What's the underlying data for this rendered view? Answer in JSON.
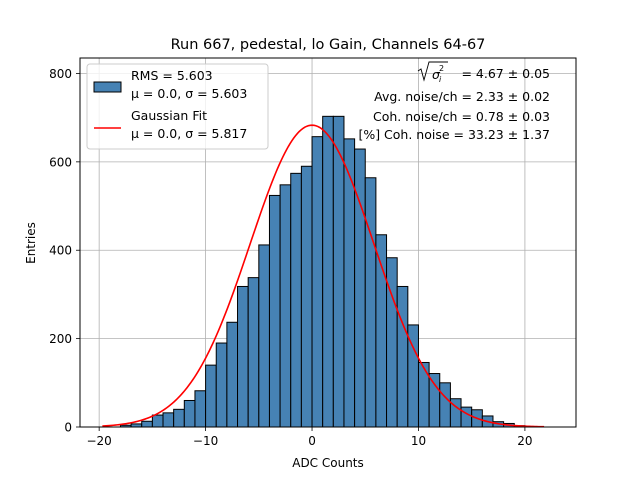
{
  "chart_data": {
    "type": "bar",
    "title": "Run 667, pedestal, lo Gain, Channels 64-67",
    "xlabel": "ADC Counts",
    "ylabel": "Entries",
    "xlim": [
      -21.8,
      24.8
    ],
    "ylim": [
      0,
      835
    ],
    "xticks": [
      -20,
      -10,
      0,
      10,
      20
    ],
    "yticks": [
      0,
      200,
      400,
      600,
      800
    ],
    "grid": true,
    "bar_color": "#4682b4",
    "fit_color": "#ff0000",
    "bin_width": 1,
    "bins": [
      {
        "x0": -18,
        "count": 4
      },
      {
        "x0": -17,
        "count": 7
      },
      {
        "x0": -16,
        "count": 13
      },
      {
        "x0": -15,
        "count": 27
      },
      {
        "x0": -14,
        "count": 32
      },
      {
        "x0": -13,
        "count": 40
      },
      {
        "x0": -12,
        "count": 60
      },
      {
        "x0": -11,
        "count": 82
      },
      {
        "x0": -10,
        "count": 140
      },
      {
        "x0": -9,
        "count": 190
      },
      {
        "x0": -8,
        "count": 237
      },
      {
        "x0": -7,
        "count": 318
      },
      {
        "x0": -6,
        "count": 338
      },
      {
        "x0": -5,
        "count": 412
      },
      {
        "x0": -4,
        "count": 524
      },
      {
        "x0": -3,
        "count": 548
      },
      {
        "x0": -2,
        "count": 574
      },
      {
        "x0": -1,
        "count": 590
      },
      {
        "x0": 0,
        "count": 657
      },
      {
        "x0": 1,
        "count": 703
      },
      {
        "x0": 2,
        "count": 703
      },
      {
        "x0": 3,
        "count": 652
      },
      {
        "x0": 4,
        "count": 629
      },
      {
        "x0": 5,
        "count": 564
      },
      {
        "x0": 6,
        "count": 435
      },
      {
        "x0": 7,
        "count": 383
      },
      {
        "x0": 8,
        "count": 318
      },
      {
        "x0": 9,
        "count": 231
      },
      {
        "x0": 10,
        "count": 146
      },
      {
        "x0": 11,
        "count": 121
      },
      {
        "x0": 12,
        "count": 100
      },
      {
        "x0": 13,
        "count": 64
      },
      {
        "x0": 14,
        "count": 45
      },
      {
        "x0": 15,
        "count": 39
      },
      {
        "x0": 16,
        "count": 25
      },
      {
        "x0": 17,
        "count": 12
      },
      {
        "x0": 18,
        "count": 8
      },
      {
        "x0": 19,
        "count": 3
      }
    ],
    "gaussian_fit": {
      "mu": 0.0,
      "sigma": 5.817,
      "amplitude": 683,
      "x_range": [
        -19.7,
        21.8
      ]
    },
    "legend": {
      "position": "top-left",
      "entries": [
        {
          "kind": "patch",
          "line1": "RMS = 5.603",
          "line2": "μ = 0.0, σ = 5.603"
        },
        {
          "kind": "line",
          "line1": "Gaussian Fit",
          "line2": "μ = 0.0, σ = 5.817"
        }
      ]
    },
    "annotations": [
      {
        "kind": "sqrt",
        "symbol": "σ",
        "sub": "i",
        "sup": "2",
        "value": "= 4.67 ± 0.05"
      },
      {
        "kind": "text",
        "value": "Avg. noise/ch = 2.33 ± 0.02"
      },
      {
        "kind": "text",
        "value": "Coh. noise/ch = 0.78 ± 0.03"
      },
      {
        "kind": "text",
        "value": "[%] Coh. noise = 33.23 ± 1.37"
      }
    ]
  }
}
